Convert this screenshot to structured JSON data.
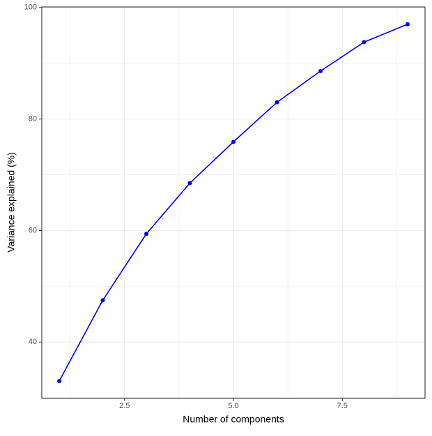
{
  "chart_data": {
    "type": "line",
    "x_label": "Number of components",
    "y_label": "Variance explained (%)",
    "x": [
      1,
      2,
      3,
      4,
      5,
      6,
      7,
      8,
      9
    ],
    "series": [
      {
        "name": "Variance explained",
        "color": "#0000ff",
        "values": [
          33.0,
          47.5,
          59.4,
          68.5,
          75.9,
          83.0,
          88.6,
          93.8,
          97.0
        ]
      }
    ],
    "xlim": [
      0.6,
      9.4
    ],
    "ylim": [
      29.9,
      100.1
    ],
    "xticks": [
      {
        "value": 2.5,
        "label": "2.5"
      },
      {
        "value": 5,
        "label": "5.0"
      },
      {
        "value": 7.5,
        "label": "7.5"
      }
    ],
    "yticks": [
      40,
      60,
      80,
      100
    ],
    "x_minor_grid": [
      1.25,
      3.75,
      6.25,
      8.75
    ],
    "y_minor_grid": [
      30,
      50,
      70,
      90
    ],
    "grid": true
  }
}
